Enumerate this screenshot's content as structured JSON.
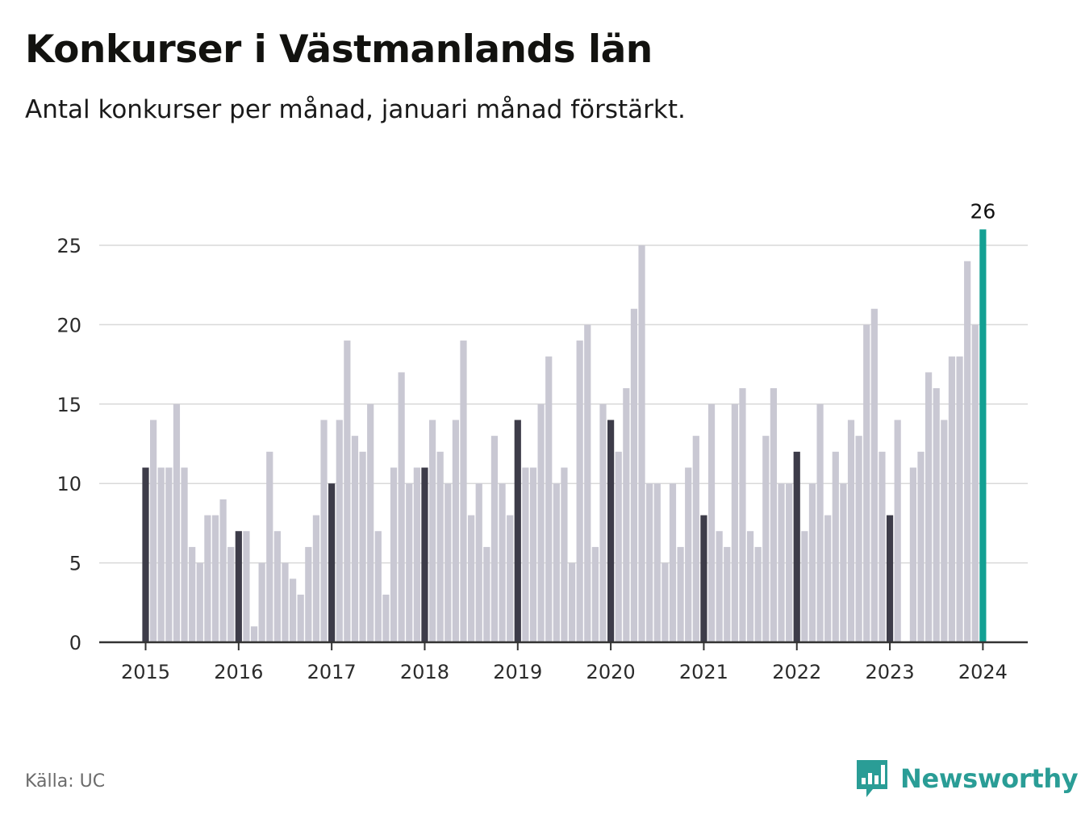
{
  "title": "Konkurser i Västmanlands län",
  "subtitle": "Antal konkurser per månad, januari månad förstärkt.",
  "source": "Källa: UC",
  "brand": {
    "name": "Newsworthy",
    "icon": "newsworthy-logo-icon",
    "color": "#2a9d96"
  },
  "colors": {
    "january": "#3d3c49",
    "other": "#c9c8d3",
    "latest": "#13a093",
    "grid": "#d9d9d9",
    "axis": "#333333"
  },
  "chart_data": {
    "type": "bar",
    "title": "Konkurser i Västmanlands län",
    "subtitle": "Antal konkurser per månad, januari månad förstärkt.",
    "start": "2015-01",
    "ylim": [
      0,
      27
    ],
    "yticks": [
      0,
      5,
      10,
      15,
      20,
      25
    ],
    "xticks": [
      "2015",
      "2016",
      "2017",
      "2018",
      "2019",
      "2020",
      "2021",
      "2022",
      "2023",
      "2024"
    ],
    "grid": true,
    "highlight": "January months darker; latest month (January 2024) highlighted and labelled",
    "latest_label": "26",
    "values": [
      11,
      14,
      11,
      11,
      15,
      11,
      6,
      5,
      8,
      8,
      9,
      6,
      7,
      7,
      1,
      5,
      12,
      7,
      5,
      4,
      3,
      6,
      8,
      14,
      10,
      14,
      19,
      13,
      12,
      15,
      7,
      3,
      11,
      17,
      10,
      11,
      11,
      14,
      12,
      10,
      14,
      19,
      8,
      10,
      6,
      13,
      10,
      8,
      14,
      11,
      11,
      15,
      18,
      10,
      11,
      5,
      19,
      20,
      6,
      15,
      14,
      12,
      16,
      21,
      25,
      10,
      10,
      5,
      10,
      6,
      11,
      13,
      8,
      15,
      7,
      6,
      15,
      16,
      7,
      6,
      13,
      16,
      10,
      10,
      12,
      7,
      10,
      15,
      8,
      12,
      10,
      14,
      13,
      20,
      21,
      12,
      8,
      14,
      0,
      11,
      12,
      17,
      16,
      14,
      18,
      18,
      24,
      20,
      26
    ]
  }
}
